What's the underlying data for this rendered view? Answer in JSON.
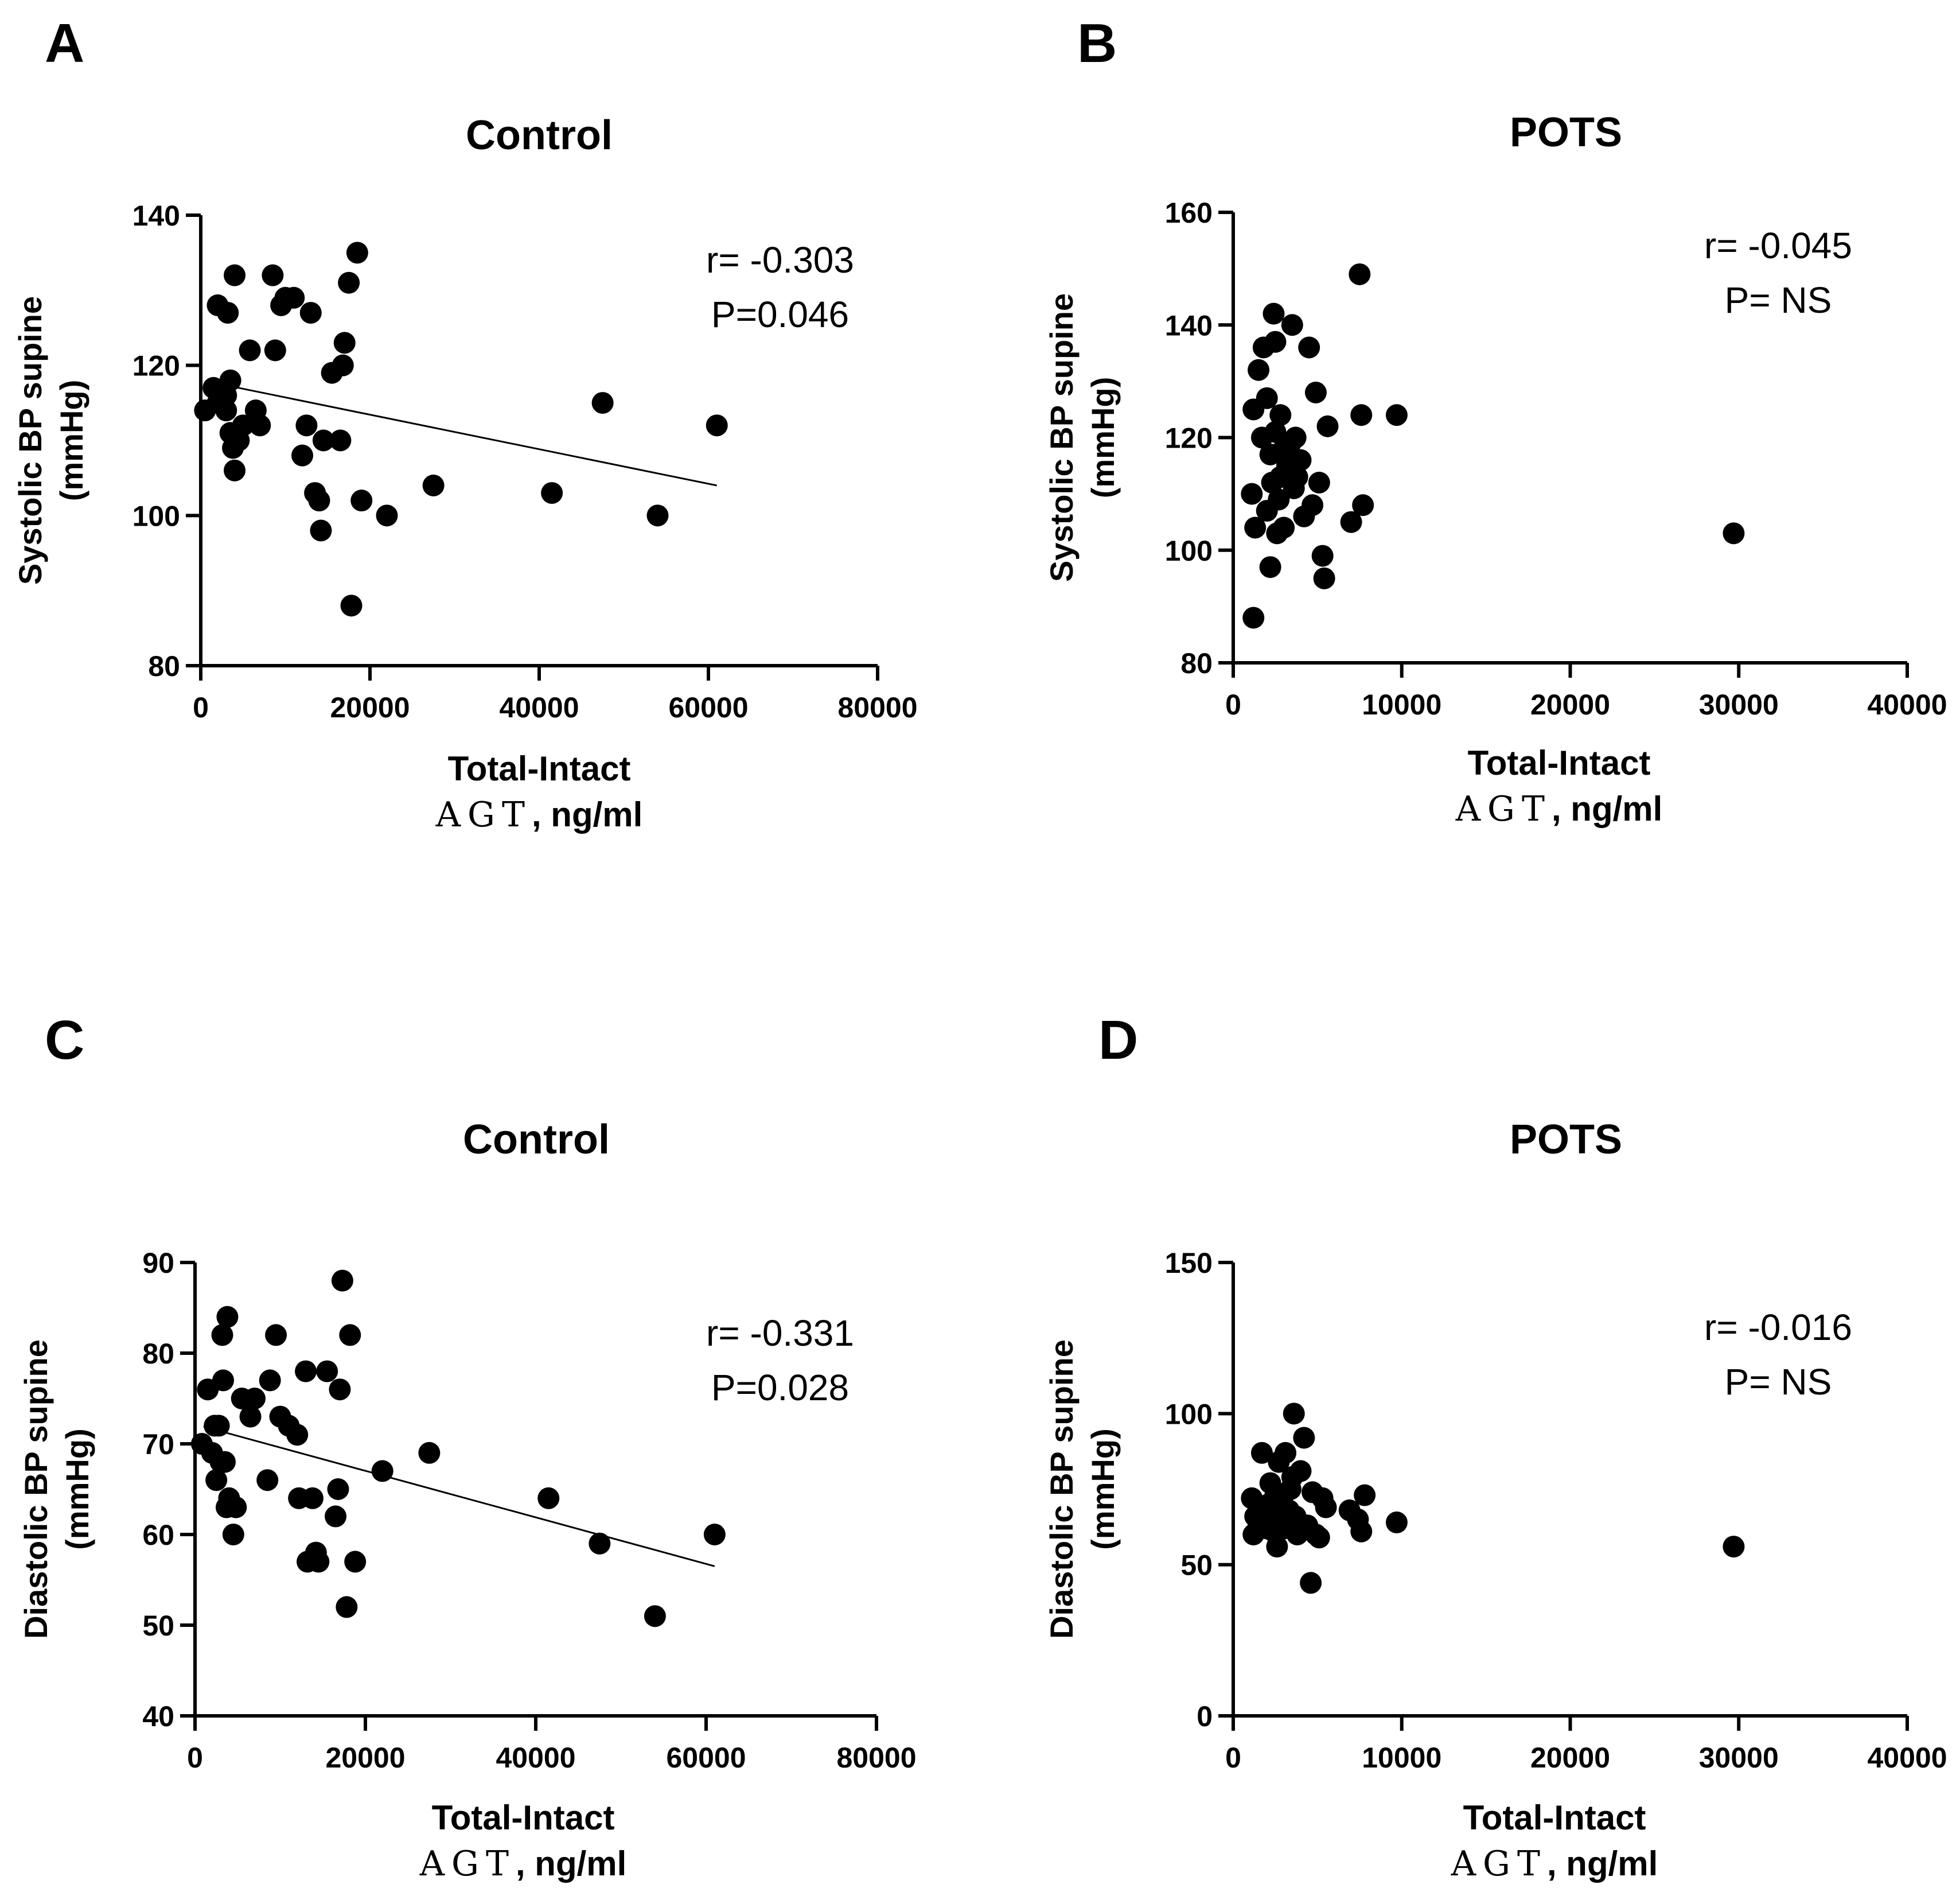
{
  "chart_data": [
    {
      "panel_label": "A",
      "type": "scatter",
      "title": "Control",
      "ylabel_line1": "Systolic BP supine",
      "ylabel_line2": "(mmHg)",
      "xlabel_line1": "Total-Intact",
      "xlabel_line2_prefix": "AGT",
      "xlabel_line2_suffix": ", ng/ml",
      "xlim": [
        0,
        80000
      ],
      "ylim": [
        80,
        140
      ],
      "xticks": [
        0,
        20000,
        40000,
        60000,
        80000
      ],
      "yticks": [
        80,
        100,
        120,
        140
      ],
      "stat_r": "r= -0.303",
      "stat_p": "P=0.046",
      "regression": {
        "x0": 1000,
        "y0": 117.8,
        "x1": 61000,
        "y1": 104
      },
      "points": [
        [
          500,
          114
        ],
        [
          1500,
          117
        ],
        [
          2000,
          128
        ],
        [
          2000,
          115
        ],
        [
          2500,
          116
        ],
        [
          3000,
          116
        ],
        [
          3000,
          114
        ],
        [
          3200,
          127
        ],
        [
          3500,
          118
        ],
        [
          3500,
          111
        ],
        [
          3800,
          109
        ],
        [
          4000,
          132
        ],
        [
          4000,
          106
        ],
        [
          4500,
          110
        ],
        [
          5000,
          112
        ],
        [
          5800,
          122
        ],
        [
          6500,
          114
        ],
        [
          7000,
          112
        ],
        [
          8500,
          132
        ],
        [
          8800,
          122
        ],
        [
          9500,
          128
        ],
        [
          10000,
          129
        ],
        [
          11000,
          129
        ],
        [
          12000,
          108
        ],
        [
          12500,
          112
        ],
        [
          13000,
          127
        ],
        [
          13500,
          103
        ],
        [
          14000,
          102
        ],
        [
          14200,
          98
        ],
        [
          14500,
          110
        ],
        [
          15500,
          119
        ],
        [
          16500,
          110
        ],
        [
          16800,
          120
        ],
        [
          17000,
          123
        ],
        [
          17500,
          131
        ],
        [
          17800,
          88
        ],
        [
          18500,
          135
        ],
        [
          19000,
          102
        ],
        [
          22000,
          100
        ],
        [
          27500,
          104
        ],
        [
          41500,
          103
        ],
        [
          47500,
          115
        ],
        [
          54000,
          100
        ],
        [
          61000,
          112
        ]
      ]
    },
    {
      "panel_label": "B",
      "type": "scatter",
      "title": "POTS",
      "ylabel_line1": "Systolic BP supine",
      "ylabel_line2": "(mmHg)",
      "xlabel_line1": "Total-Intact",
      "xlabel_line2_prefix": "AGT",
      "xlabel_line2_suffix": ", ng/ml",
      "xlim": [
        0,
        40000
      ],
      "ylim": [
        80,
        160
      ],
      "xticks": [
        0,
        10000,
        20000,
        30000,
        40000
      ],
      "yticks": [
        80,
        100,
        120,
        140,
        160
      ],
      "stat_r": "r= -0.045",
      "stat_p": "P= NS",
      "regression": null,
      "points": [
        [
          1100,
          110
        ],
        [
          1200,
          88
        ],
        [
          1200,
          125
        ],
        [
          1300,
          104
        ],
        [
          1500,
          132
        ],
        [
          1700,
          120
        ],
        [
          1800,
          136
        ],
        [
          2000,
          127
        ],
        [
          2000,
          107
        ],
        [
          2200,
          97
        ],
        [
          2200,
          117
        ],
        [
          2300,
          112
        ],
        [
          2400,
          142
        ],
        [
          2500,
          137
        ],
        [
          2500,
          121
        ],
        [
          2600,
          103
        ],
        [
          2700,
          109
        ],
        [
          2800,
          124
        ],
        [
          2800,
          113
        ],
        [
          3000,
          118
        ],
        [
          3000,
          104
        ],
        [
          3200,
          115
        ],
        [
          3400,
          119
        ],
        [
          3500,
          140
        ],
        [
          3600,
          111
        ],
        [
          3700,
          120
        ],
        [
          3800,
          113
        ],
        [
          4000,
          116
        ],
        [
          4200,
          106
        ],
        [
          4500,
          136
        ],
        [
          4700,
          108
        ],
        [
          4900,
          128
        ],
        [
          5100,
          112
        ],
        [
          5300,
          99
        ],
        [
          5400,
          95
        ],
        [
          5600,
          122
        ],
        [
          7000,
          105
        ],
        [
          7500,
          149
        ],
        [
          7600,
          124
        ],
        [
          7700,
          108
        ],
        [
          9700,
          124
        ],
        [
          29700,
          103
        ]
      ]
    },
    {
      "panel_label": "C",
      "type": "scatter",
      "title": "Control",
      "ylabel_line1": "Diastolic BP supine",
      "ylabel_line2": "(mmHg)",
      "xlabel_line1": "Total-Intact",
      "xlabel_line2_prefix": "AGT",
      "xlabel_line2_suffix": ", ng/ml",
      "xlim": [
        0,
        80000
      ],
      "ylim": [
        40,
        90
      ],
      "xticks": [
        0,
        20000,
        40000,
        60000,
        80000
      ],
      "yticks": [
        40,
        50,
        60,
        70,
        80,
        90
      ],
      "stat_r": "r= -0.331",
      "stat_p": "P=0.028",
      "regression": {
        "x0": 1000,
        "y0": 71.9,
        "x1": 61000,
        "y1": 56.5
      },
      "points": [
        [
          800,
          70
        ],
        [
          1500,
          76
        ],
        [
          2000,
          69
        ],
        [
          2300,
          72
        ],
        [
          2500,
          66
        ],
        [
          2800,
          72
        ],
        [
          3000,
          68
        ],
        [
          3200,
          82
        ],
        [
          3300,
          77
        ],
        [
          3500,
          68
        ],
        [
          3700,
          63
        ],
        [
          3800,
          84
        ],
        [
          4000,
          64
        ],
        [
          4500,
          60
        ],
        [
          4800,
          63
        ],
        [
          5500,
          75
        ],
        [
          6500,
          73
        ],
        [
          7000,
          75
        ],
        [
          8500,
          66
        ],
        [
          8800,
          77
        ],
        [
          9500,
          82
        ],
        [
          10000,
          73
        ],
        [
          11000,
          72
        ],
        [
          12000,
          71
        ],
        [
          12200,
          64
        ],
        [
          13000,
          78
        ],
        [
          13200,
          57
        ],
        [
          13800,
          64
        ],
        [
          14200,
          58
        ],
        [
          14500,
          57
        ],
        [
          15500,
          78
        ],
        [
          16500,
          62
        ],
        [
          16800,
          65
        ],
        [
          17000,
          76
        ],
        [
          17300,
          88
        ],
        [
          17800,
          52
        ],
        [
          18200,
          82
        ],
        [
          18800,
          57
        ],
        [
          22000,
          67
        ],
        [
          27500,
          69
        ],
        [
          41500,
          64
        ],
        [
          47500,
          59
        ],
        [
          54000,
          51
        ],
        [
          61000,
          60
        ]
      ]
    },
    {
      "panel_label": "D",
      "type": "scatter",
      "title": "POTS",
      "ylabel_line1": "Diastolic BP supine",
      "ylabel_line2": "(mmHg)",
      "xlabel_line1": "Total-Intact",
      "xlabel_line2_prefix": "AGT",
      "xlabel_line2_suffix": ", ng/ml",
      "xlim": [
        0,
        40000
      ],
      "ylim": [
        0,
        150
      ],
      "xticks": [
        0,
        10000,
        20000,
        30000,
        40000
      ],
      "yticks": [
        0,
        50,
        100,
        150
      ],
      "stat_r": "r= -0.016",
      "stat_p": "P= NS",
      "regression": null,
      "points": [
        [
          1100,
          72
        ],
        [
          1200,
          60
        ],
        [
          1300,
          66
        ],
        [
          1500,
          63
        ],
        [
          1600,
          69
        ],
        [
          1700,
          87
        ],
        [
          1800,
          64
        ],
        [
          2000,
          62
        ],
        [
          2100,
          70
        ],
        [
          2200,
          77
        ],
        [
          2300,
          67
        ],
        [
          2400,
          61
        ],
        [
          2500,
          73
        ],
        [
          2600,
          56
        ],
        [
          2700,
          84
        ],
        [
          2800,
          65
        ],
        [
          2900,
          71
        ],
        [
          3000,
          62
        ],
        [
          3100,
          87
        ],
        [
          3300,
          68
        ],
        [
          3400,
          75
        ],
        [
          3500,
          79
        ],
        [
          3600,
          100
        ],
        [
          3700,
          66
        ],
        [
          3800,
          60
        ],
        [
          4000,
          81
        ],
        [
          4200,
          92
        ],
        [
          4400,
          63
        ],
        [
          4600,
          44
        ],
        [
          4700,
          74
        ],
        [
          4900,
          60
        ],
        [
          5100,
          59
        ],
        [
          5300,
          72
        ],
        [
          5500,
          69
        ],
        [
          6900,
          68
        ],
        [
          7400,
          65
        ],
        [
          7600,
          61
        ],
        [
          7800,
          73
        ],
        [
          9700,
          64
        ],
        [
          29700,
          56
        ]
      ]
    }
  ]
}
